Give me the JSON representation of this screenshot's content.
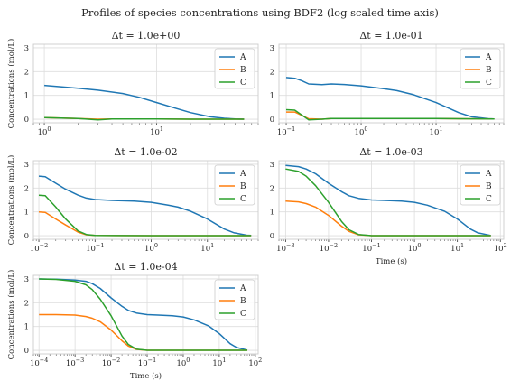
{
  "chart_data": {
    "type": "line",
    "suptitle": "Profiles of species concentrations using BDF2 (log scaled time axis)",
    "colors": {
      "A": "#1f77b4",
      "B": "#ff7f0e",
      "C": "#2ca02c"
    },
    "grid": true,
    "legend_position": "top-right",
    "subplots": [
      {
        "title": "Δt = 1.0e+00",
        "xscale": "log",
        "xlim": [
          0.8,
          80
        ],
        "ylim": [
          -0.15,
          3.15
        ],
        "xticks": [
          1,
          10
        ],
        "xtick_labels": [
          "10^0",
          "10^1"
        ],
        "yticks": [
          0,
          1,
          2,
          3
        ],
        "ylabel": "Concentrations (mol/L)",
        "xlabel": "",
        "series": [
          {
            "name": "A",
            "x": [
              1,
              2,
              3,
              5,
              7,
              10,
              15,
              20,
              30,
              40,
              50,
              60
            ],
            "y": [
              1.42,
              1.3,
              1.22,
              1.08,
              0.92,
              0.7,
              0.45,
              0.28,
              0.1,
              0.04,
              0.01,
              0.0
            ]
          },
          {
            "name": "B",
            "x": [
              1,
              2,
              3,
              4,
              5,
              10,
              20,
              60
            ],
            "y": [
              0.07,
              0.03,
              0.0,
              0.01,
              0.01,
              0.01,
              0.0,
              0.0
            ]
          },
          {
            "name": "C",
            "x": [
              1,
              2,
              3,
              4,
              5,
              10,
              20,
              60
            ],
            "y": [
              0.07,
              0.03,
              -0.03,
              0.01,
              0.01,
              0.01,
              0.0,
              0.0
            ]
          }
        ]
      },
      {
        "title": "Δt = 1.0e-01",
        "xscale": "log",
        "xlim": [
          0.08,
          80
        ],
        "ylim": [
          -0.15,
          3.15
        ],
        "xticks": [
          0.1,
          1,
          10
        ],
        "xtick_labels": [
          "10^-1",
          "10^0",
          "10^1"
        ],
        "yticks": [
          0,
          1,
          2,
          3
        ],
        "ylabel": "",
        "xlabel": "",
        "series": [
          {
            "name": "A",
            "x": [
              0.1,
              0.13,
              0.16,
              0.2,
              0.3,
              0.4,
              0.6,
              1,
              2,
              3,
              5,
              10,
              20,
              30,
              50,
              60
            ],
            "y": [
              1.75,
              1.72,
              1.62,
              1.48,
              1.45,
              1.48,
              1.46,
              1.4,
              1.28,
              1.2,
              1.03,
              0.7,
              0.28,
              0.1,
              0.02,
              0.01
            ]
          },
          {
            "name": "B",
            "x": [
              0.1,
              0.13,
              0.2,
              0.3,
              0.4,
              1,
              10,
              60
            ],
            "y": [
              0.3,
              0.3,
              0.02,
              0.0,
              0.03,
              0.03,
              0.03,
              0.01
            ]
          },
          {
            "name": "C",
            "x": [
              0.1,
              0.13,
              0.2,
              0.3,
              0.4,
              1,
              10,
              60
            ],
            "y": [
              0.4,
              0.38,
              -0.03,
              0.0,
              0.03,
              0.03,
              0.03,
              0.01
            ]
          }
        ]
      },
      {
        "title": "Δt = 1.0e-02",
        "xscale": "log",
        "xlim": [
          0.008,
          80
        ],
        "ylim": [
          -0.15,
          3.15
        ],
        "xticks": [
          0.01,
          0.1,
          1,
          10
        ],
        "xtick_labels": [
          "10^-2",
          "10^-1",
          "10^0",
          "10^1"
        ],
        "yticks": [
          0,
          1,
          2,
          3
        ],
        "ylabel": "Concentrations (mol/L)",
        "xlabel": "",
        "series": [
          {
            "name": "A",
            "x": [
              0.01,
              0.013,
              0.02,
              0.03,
              0.05,
              0.07,
              0.1,
              0.2,
              0.5,
              1,
              2,
              3,
              5,
              10,
              20,
              30,
              50,
              60
            ],
            "y": [
              2.5,
              2.48,
              2.2,
              1.95,
              1.7,
              1.58,
              1.52,
              1.48,
              1.45,
              1.4,
              1.28,
              1.2,
              1.03,
              0.7,
              0.28,
              0.12,
              0.02,
              0.01
            ]
          },
          {
            "name": "B",
            "x": [
              0.01,
              0.013,
              0.02,
              0.03,
              0.05,
              0.07,
              0.1,
              1,
              10,
              60
            ],
            "y": [
              1.0,
              0.98,
              0.7,
              0.45,
              0.15,
              0.04,
              0.01,
              0.0,
              0.0,
              0.0
            ]
          },
          {
            "name": "C",
            "x": [
              0.01,
              0.013,
              0.02,
              0.03,
              0.05,
              0.07,
              0.1,
              1,
              10,
              60
            ],
            "y": [
              1.7,
              1.68,
              1.2,
              0.7,
              0.2,
              0.05,
              0.01,
              0.0,
              0.0,
              0.0
            ]
          }
        ]
      },
      {
        "title": "Δt = 1.0e-03",
        "xscale": "log",
        "xlim": [
          0.0007,
          120
        ],
        "ylim": [
          -0.15,
          3.15
        ],
        "xticks": [
          0.001,
          0.01,
          0.1,
          1,
          10,
          100
        ],
        "xtick_labels": [
          "10^-3",
          "10^-2",
          "10^-1",
          "10^0",
          "10^1",
          "10^2"
        ],
        "yticks": [
          0,
          1,
          2,
          3
        ],
        "ylabel": "",
        "xlabel": "Time (s)",
        "series": [
          {
            "name": "A",
            "x": [
              0.001,
              0.002,
              0.003,
              0.005,
              0.01,
              0.02,
              0.03,
              0.05,
              0.1,
              0.2,
              0.5,
              1,
              2,
              5,
              10,
              20,
              30,
              60
            ],
            "y": [
              2.95,
              2.9,
              2.8,
              2.6,
              2.2,
              1.85,
              1.68,
              1.57,
              1.5,
              1.48,
              1.45,
              1.4,
              1.28,
              1.03,
              0.7,
              0.28,
              0.12,
              0.01
            ]
          },
          {
            "name": "B",
            "x": [
              0.001,
              0.002,
              0.003,
              0.005,
              0.01,
              0.02,
              0.03,
              0.05,
              0.1,
              1,
              60
            ],
            "y": [
              1.45,
              1.42,
              1.35,
              1.2,
              0.85,
              0.4,
              0.18,
              0.04,
              0.0,
              0.0,
              0.0
            ]
          },
          {
            "name": "C",
            "x": [
              0.001,
              0.002,
              0.003,
              0.005,
              0.01,
              0.02,
              0.03,
              0.05,
              0.1,
              1,
              60
            ],
            "y": [
              2.8,
              2.7,
              2.5,
              2.1,
              1.4,
              0.6,
              0.25,
              0.05,
              0.0,
              0.0,
              0.0
            ]
          }
        ]
      },
      {
        "title": "Δt = 1.0e-04",
        "xscale": "log",
        "xlim": [
          7e-05,
          120
        ],
        "ylim": [
          -0.15,
          3.15
        ],
        "xticks": [
          0.0001,
          0.001,
          0.01,
          0.1,
          1,
          10,
          100
        ],
        "xtick_labels": [
          "10^-4",
          "10^-3",
          "10^-2",
          "10^-1",
          "10^0",
          "10^1",
          "10^2"
        ],
        "yticks": [
          0,
          1,
          2,
          3
        ],
        "ylabel": "Concentrations (mol/L)",
        "xlabel": "Time (s)",
        "series": [
          {
            "name": "A",
            "x": [
              0.0001,
              0.0003,
              0.001,
              0.002,
              0.003,
              0.005,
              0.01,
              0.02,
              0.03,
              0.05,
              0.1,
              0.2,
              0.5,
              1,
              2,
              5,
              10,
              20,
              30,
              60
            ],
            "y": [
              3.0,
              2.99,
              2.95,
              2.9,
              2.8,
              2.6,
              2.2,
              1.85,
              1.68,
              1.57,
              1.5,
              1.48,
              1.45,
              1.4,
              1.28,
              1.03,
              0.7,
              0.28,
              0.12,
              0.01
            ]
          },
          {
            "name": "B",
            "x": [
              0.0001,
              0.0003,
              0.001,
              0.002,
              0.003,
              0.005,
              0.01,
              0.02,
              0.03,
              0.05,
              0.1,
              1,
              60
            ],
            "y": [
              1.5,
              1.5,
              1.48,
              1.42,
              1.35,
              1.2,
              0.85,
              0.4,
              0.18,
              0.04,
              0.0,
              0.0,
              0.0
            ]
          },
          {
            "name": "C",
            "x": [
              0.0001,
              0.0003,
              0.001,
              0.002,
              0.003,
              0.005,
              0.01,
              0.02,
              0.03,
              0.05,
              0.1,
              1,
              60
            ],
            "y": [
              3.0,
              2.98,
              2.9,
              2.75,
              2.55,
              2.15,
              1.45,
              0.6,
              0.25,
              0.05,
              0.0,
              0.0,
              0.0
            ]
          }
        ]
      }
    ]
  }
}
